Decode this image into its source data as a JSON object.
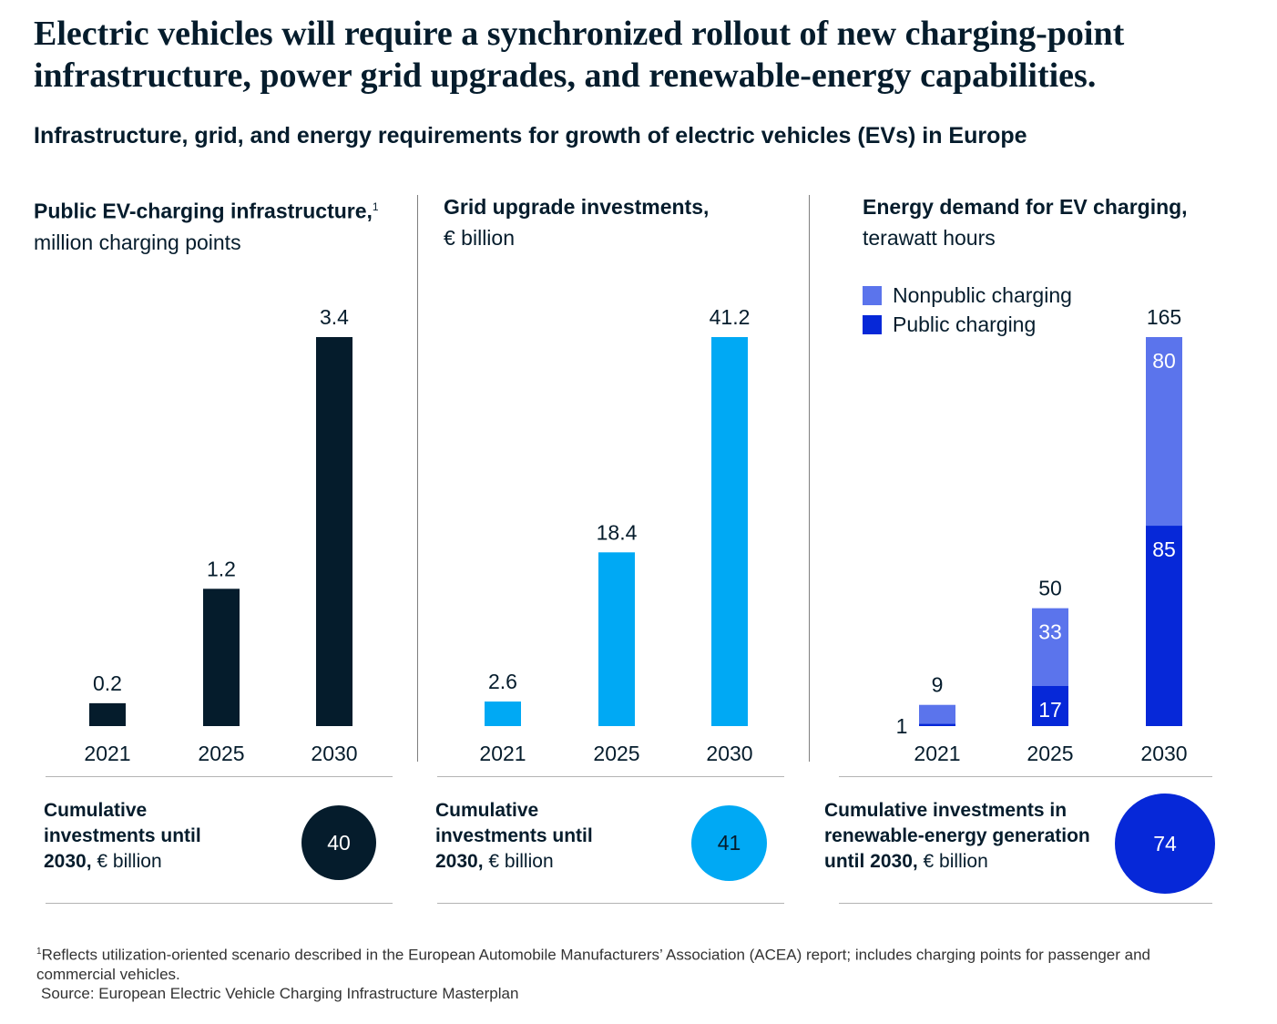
{
  "title": "Electric vehicles will require a synchronized rollout of new charging-point infrastructure, power grid upgrades, and renewable-energy capabilities.",
  "subtitle": "Infrastructure, grid, and energy requirements for growth of electric vehicles (EVs) in Europe",
  "colors": {
    "dark_navy": "#051c2c",
    "cyan": "#00a9f4",
    "periwinkle": "#5b74ec",
    "royal_blue": "#0628d8"
  },
  "panels": [
    {
      "title_bold": "Public EV-charging infrastructure,",
      "title_sup": "1",
      "unit": "million charging points",
      "cumulative": {
        "bold": "Cumulative investments until 2030,",
        "normal": "€ billion",
        "value": "40"
      }
    },
    {
      "title_bold": "Grid upgrade investments,",
      "title_sup": "",
      "unit": "€ billion",
      "cumulative": {
        "bold": "Cumulative investments until 2030,",
        "normal": "€ billion",
        "value": "41"
      }
    },
    {
      "title_bold": "Energy demand for EV charging,",
      "title_sup": "",
      "unit": "terawatt hours",
      "cumulative": {
        "bold": "Cumulative investments in renewable-energy generation until 2030,",
        "normal": "€ billion",
        "value": "74"
      }
    }
  ],
  "legend": [
    "Nonpublic charging",
    "Public charging"
  ],
  "chart_data": [
    {
      "type": "bar",
      "title": "Public EV-charging infrastructure",
      "ylabel": "million charging points",
      "categories": [
        "2021",
        "2025",
        "2030"
      ],
      "values": [
        0.2,
        1.2,
        3.4
      ],
      "value_labels": [
        "0.2",
        "1.2",
        "3.4"
      ],
      "color": "#051c2c"
    },
    {
      "type": "bar",
      "title": "Grid upgrade investments",
      "ylabel": "€ billion",
      "categories": [
        "2021",
        "2025",
        "2030"
      ],
      "values": [
        2.6,
        18.4,
        41.2
      ],
      "value_labels": [
        "2.6",
        "18.4",
        "41.2"
      ],
      "color": "#00a9f4"
    },
    {
      "type": "bar",
      "stacked": true,
      "title": "Energy demand for EV charging",
      "ylabel": "terawatt hours",
      "categories": [
        "2021",
        "2025",
        "2030"
      ],
      "series": [
        {
          "name": "Public charging",
          "values": [
            1,
            17,
            85
          ],
          "color": "#0628d8"
        },
        {
          "name": "Nonpublic charging",
          "values": [
            8,
            33,
            80
          ],
          "color": "#5b74ec"
        }
      ],
      "totals": [
        9,
        50,
        165
      ],
      "legend_position": "top-left"
    }
  ],
  "footnote": {
    "marker": "1",
    "text": "Reflects utilization-oriented scenario described in the European Automobile Manufacturers’ Association (ACEA) report; includes charging points for passenger and commercial vehicles.",
    "source": "Source: European Electric Vehicle Charging Infrastructure Masterplan"
  }
}
